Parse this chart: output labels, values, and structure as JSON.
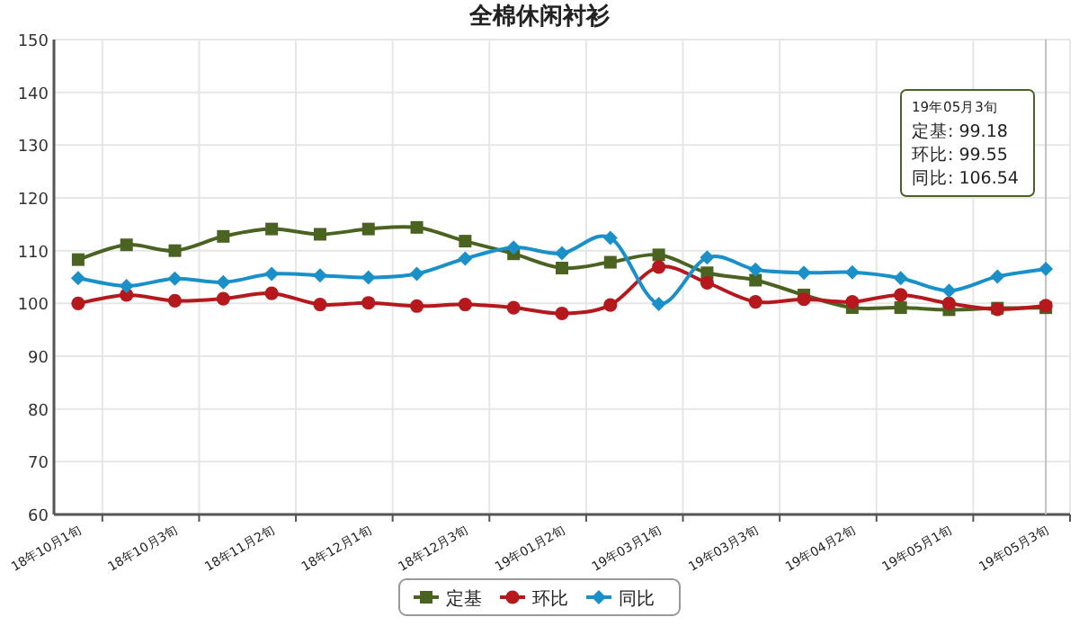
{
  "chart_data": {
    "type": "line",
    "title": "全棉休闲衬衫",
    "categories": [
      "18年10月1旬",
      null,
      "18年10月3旬",
      null,
      "18年11月2旬",
      null,
      "18年12月1旬",
      null,
      "18年12月3旬",
      null,
      "19年01月2旬",
      null,
      "19年03月1旬",
      null,
      "19年03月3旬",
      null,
      "19年04月2旬",
      null,
      "19年05月1旬",
      null,
      "19年05月3旬"
    ],
    "series": [
      {
        "name": "定基",
        "color": "#4b6320",
        "marker": "square",
        "values": [
          108.3,
          111.1,
          110,
          112.7,
          114.1,
          113.1,
          114.1,
          114.4,
          111.8,
          109.4,
          106.7,
          107.8,
          109.2,
          105.8,
          104.4,
          101.6,
          99.2,
          99.2,
          98.8,
          99.1,
          99.18
        ]
      },
      {
        "name": "环比",
        "color": "#b5191d",
        "marker": "circle",
        "values": [
          100,
          101.6,
          100.5,
          100.9,
          101.9,
          99.8,
          100.1,
          99.5,
          99.8,
          99.2,
          98.1,
          99.7,
          106.9,
          103.9,
          100.3,
          100.8,
          100.3,
          101.6,
          100,
          98.9,
          99.55
        ]
      },
      {
        "name": "同比",
        "color": "#1a90c8",
        "marker": "diamond",
        "values": [
          104.8,
          103.3,
          104.7,
          104,
          105.6,
          105.3,
          104.9,
          105.6,
          108.5,
          110.6,
          109.5,
          112.4,
          99.9,
          108.7,
          106.4,
          105.8,
          105.9,
          104.8,
          102.4,
          105.1,
          106.54
        ]
      }
    ],
    "ylim": [
      60,
      150
    ],
    "yticks": [
      60,
      70,
      80,
      90,
      100,
      110,
      120,
      130,
      140,
      150
    ],
    "grid": true,
    "legend": "bottom",
    "ref_lines": [
      {
        "axis": "x",
        "value": "19年05月3旬",
        "color": "#c0c0c0"
      }
    ],
    "annotations": [
      "19年05月3旬",
      "定基: 99.18",
      "环比: 99.55",
      "同比: 106.54"
    ]
  }
}
